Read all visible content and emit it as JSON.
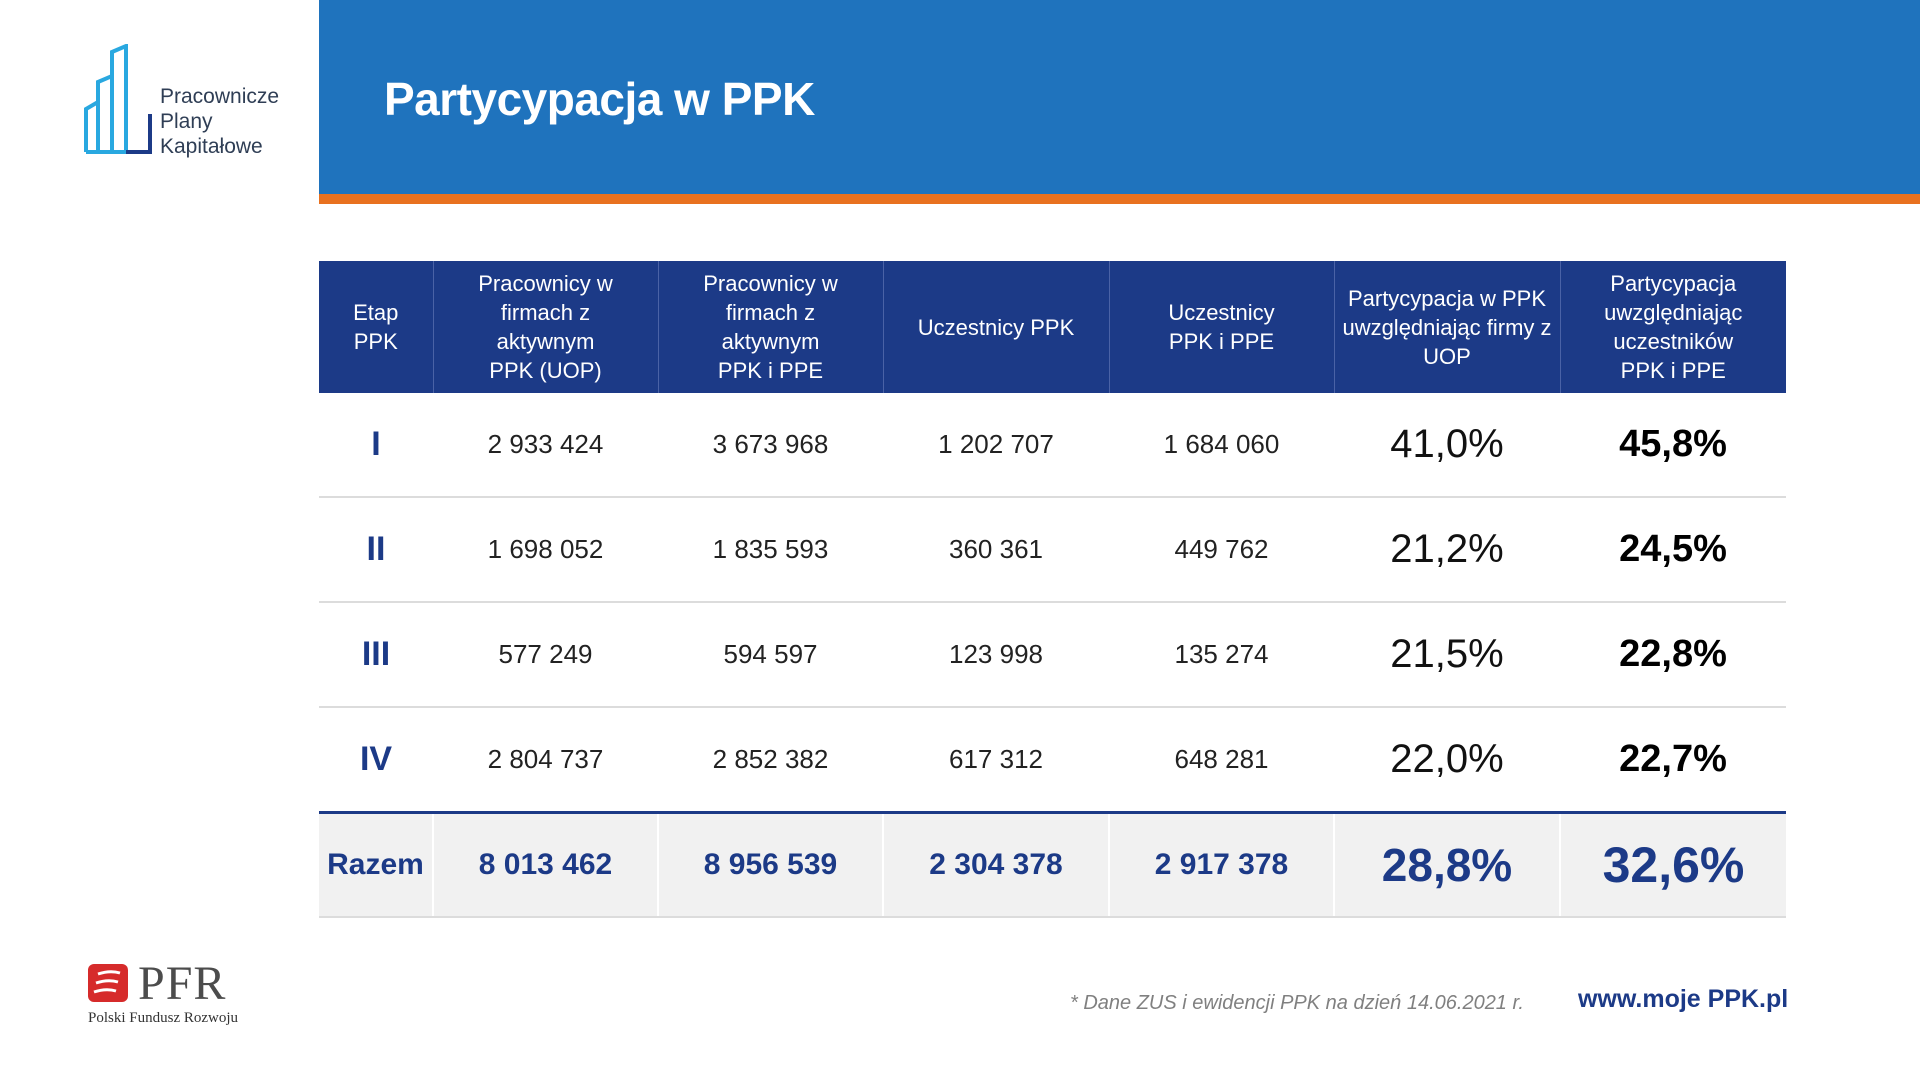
{
  "header": {
    "title": "Partycypacja w PPK",
    "band_color": "#1f73bd",
    "stripe_color": "#e8711f"
  },
  "logo": {
    "lines": [
      "Pracownicze",
      "Plany",
      "Kapitałowe"
    ],
    "icon": "ppk-buildings-logo-icon",
    "color": "#29a8e0"
  },
  "table": {
    "header_color": "#1c3a87",
    "columns": [
      "Etap PPK",
      "Pracownicy w firmach z aktywnym PPK (UOP)",
      "Pracownicy w firmach z aktywnym PPK i PPE",
      "Uczestnicy PPK",
      "Uczestnicy PPK i PPE",
      "Partycypacja w PPK uwzględniając firmy z UOP",
      "Partycypacja uwzględniając uczestników PPK i PPE"
    ],
    "rows": [
      [
        "I",
        "2 933 424",
        "3 673 968",
        "1 202 707",
        "1 684 060",
        "41,0%",
        "45,8%"
      ],
      [
        "II",
        "1 698 052",
        "1 835 593",
        "360 361",
        "449 762",
        "21,2%",
        "24,5%"
      ],
      [
        "III",
        "577 249",
        "594 597",
        "123 998",
        "135 274",
        "21,5%",
        "22,8%"
      ],
      [
        "IV",
        "2 804 737",
        "2 852 382",
        "617 312",
        "648 281",
        "22,0%",
        "22,7%"
      ]
    ],
    "total": [
      "Razem",
      "8 013 462",
      "8 956 539",
      "2 304 378",
      "2 917 378",
      "28,8%",
      "32,6%"
    ]
  },
  "footer": {
    "pfr_word": "PFR",
    "pfr_sub": "Polski Fundusz Rozwoju",
    "pfr_mark_color": "#d62b2b",
    "footnote": "* Dane ZUS i ewidencji PPK na dzień 14.06.2021 r.",
    "website": "www.moje PPK.pl"
  }
}
